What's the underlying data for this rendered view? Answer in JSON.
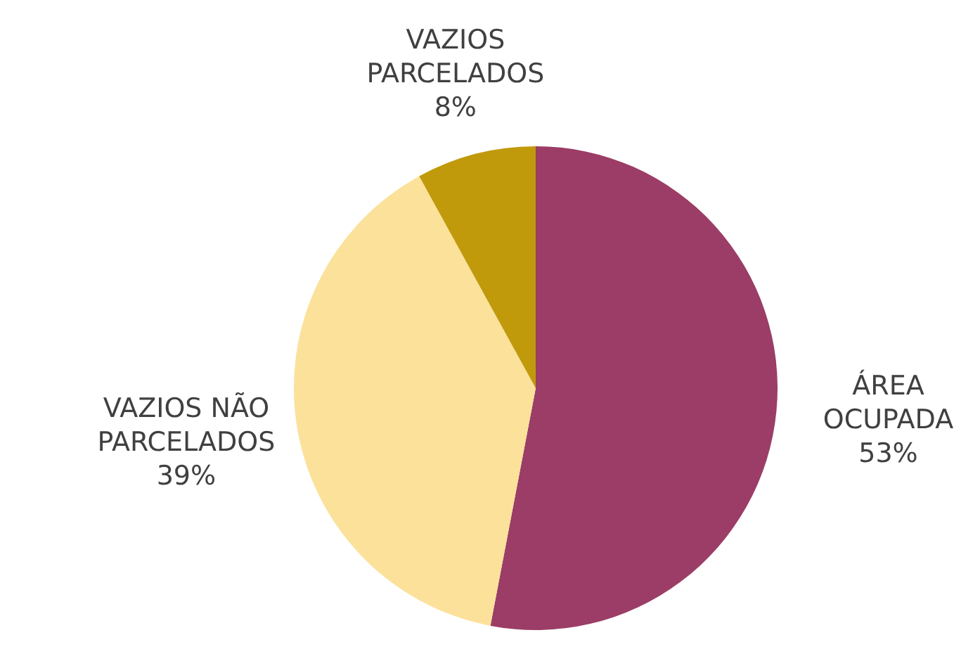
{
  "chart_data": {
    "type": "pie",
    "categories": [
      "ÁREA OCUPADA",
      "VAZIOS NÃO PARCELADOS",
      "VAZIOS PARCELADOS"
    ],
    "values": [
      53,
      39,
      8
    ],
    "colors": [
      "#9b3d66",
      "#fbe19a",
      "#c19a0b"
    ],
    "value_labels": [
      "53%",
      "39%",
      "8%"
    ]
  }
}
